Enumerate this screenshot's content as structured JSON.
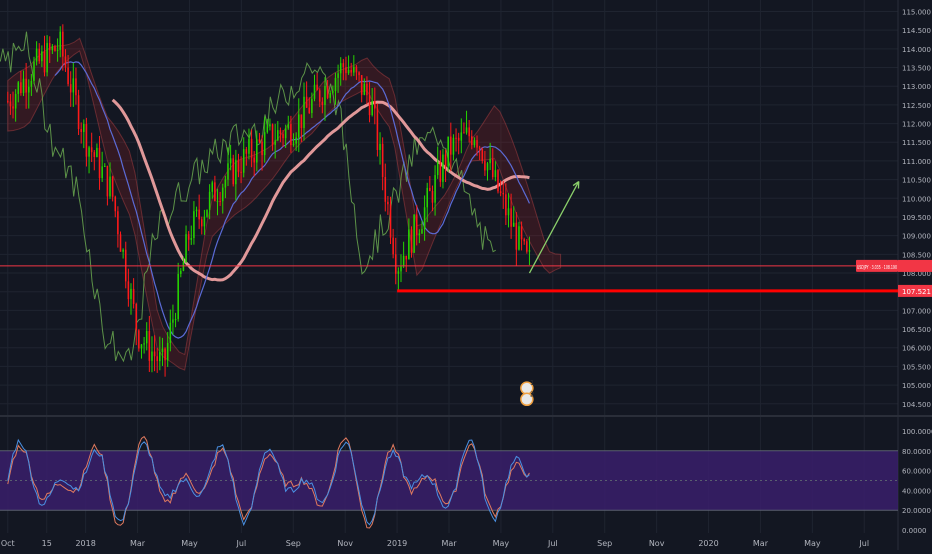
{
  "colors": {
    "background": "#131722",
    "grid": "#1f2430",
    "axis_text": "#b2b5be",
    "candle_up": "#26d400",
    "candle_down": "#ff1a1a",
    "ma_long": "#f7a6a6",
    "ma_mid": "#5b6bd6",
    "chikou_line": "#6aa84f",
    "price_label_bg": "#f23645",
    "support_line": "#ff0000",
    "arrow": "#8bd06b",
    "stoch_band": "#3a1f6b",
    "stoch_k": "#4a90e2",
    "stoch_d": "#e07a5f"
  },
  "chart_data": {
    "type": "candlestick",
    "symbol": "USDJPY",
    "price_axis": {
      "ticks": [
        115.0,
        114.5,
        114.0,
        113.5,
        113.0,
        112.5,
        112.0,
        111.5,
        111.0,
        110.5,
        110.0,
        109.5,
        109.0,
        108.5,
        108.0,
        107.5,
        107.0,
        106.5,
        106.0,
        105.5,
        105.0,
        104.5
      ],
      "tick_labels": [
        "115.000",
        "114.500",
        "114.000",
        "113.500",
        "113.000",
        "112.500",
        "112.000",
        "111.500",
        "111.000",
        "110.500",
        "110.000",
        "109.500",
        "109.000",
        "108.500",
        "108.000",
        "107.500",
        "107.000",
        "106.500",
        "106.000",
        "105.500",
        "105.000",
        "104.500"
      ],
      "ylim": [
        104.2,
        115.2
      ]
    },
    "time_axis": {
      "labels": [
        "Oct",
        "15",
        "2018",
        "Mar",
        "May",
        "Jul",
        "Sep",
        "Nov",
        "2019",
        "Mar",
        "May",
        "Jul",
        "Sep",
        "Nov",
        "2020",
        "Mar",
        "May",
        "Jul"
      ],
      "month_index": [
        0,
        1.5,
        3,
        5,
        7,
        9,
        11,
        13,
        15,
        17,
        19,
        21,
        23,
        25,
        27,
        29,
        31,
        33
      ],
      "xlim": [
        -0.3,
        34.3
      ]
    },
    "last_price_label": "USDJPY · 3.035 · 108.190",
    "last_price": 108.19,
    "support_level_label": "107.521",
    "support_level": 107.521,
    "support_from_month": 15,
    "arrow_start": {
      "month": 20.1,
      "price": 108.0
    },
    "arrow_end": {
      "month": 22.0,
      "price": 110.45
    },
    "stochastic": {
      "tick_labels": [
        "100.0000",
        "80.0000",
        "60.0000",
        "40.0000",
        "20.0000",
        "0.0000"
      ],
      "ticks": [
        100,
        80,
        60,
        40,
        20,
        0
      ],
      "band": [
        20,
        80
      ]
    },
    "events": [
      {
        "label": "1",
        "month": 20.0,
        "price": 104.92
      },
      {
        "label": "2",
        "month": 20.0,
        "price": 104.62
      }
    ]
  }
}
